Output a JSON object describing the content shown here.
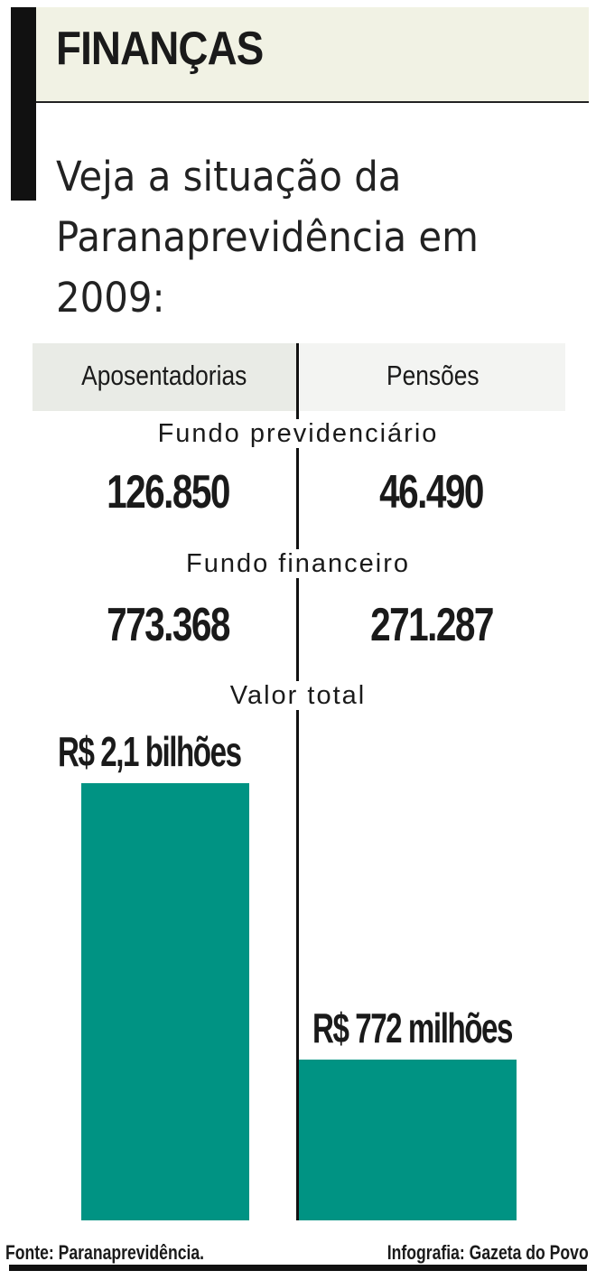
{
  "header": {
    "title": "FINANÇAS",
    "subtitle": "Veja a situação da Paranaprevidência em 2009:"
  },
  "columns": [
    "Aposentadorias",
    "Pensões"
  ],
  "sections": [
    {
      "label": "Fundo previdenciário",
      "values": [
        "126.850",
        "46.490"
      ]
    },
    {
      "label": "Fundo financeiro",
      "values": [
        "773.368",
        "271.287"
      ]
    }
  ],
  "chart_data": {
    "type": "bar",
    "title": "Valor total",
    "categories": [
      "Aposentadorias",
      "Pensões"
    ],
    "values": [
      2100,
      772
    ],
    "unit": "R$ milhões",
    "data_labels": [
      "R$ 2,1 bilhões",
      "R$ 772 milhões"
    ],
    "color": "#009383"
  },
  "footer": {
    "source": "Fonte: Paranaprevidência.",
    "credit": "Infografia: Gazeta do Povo"
  }
}
